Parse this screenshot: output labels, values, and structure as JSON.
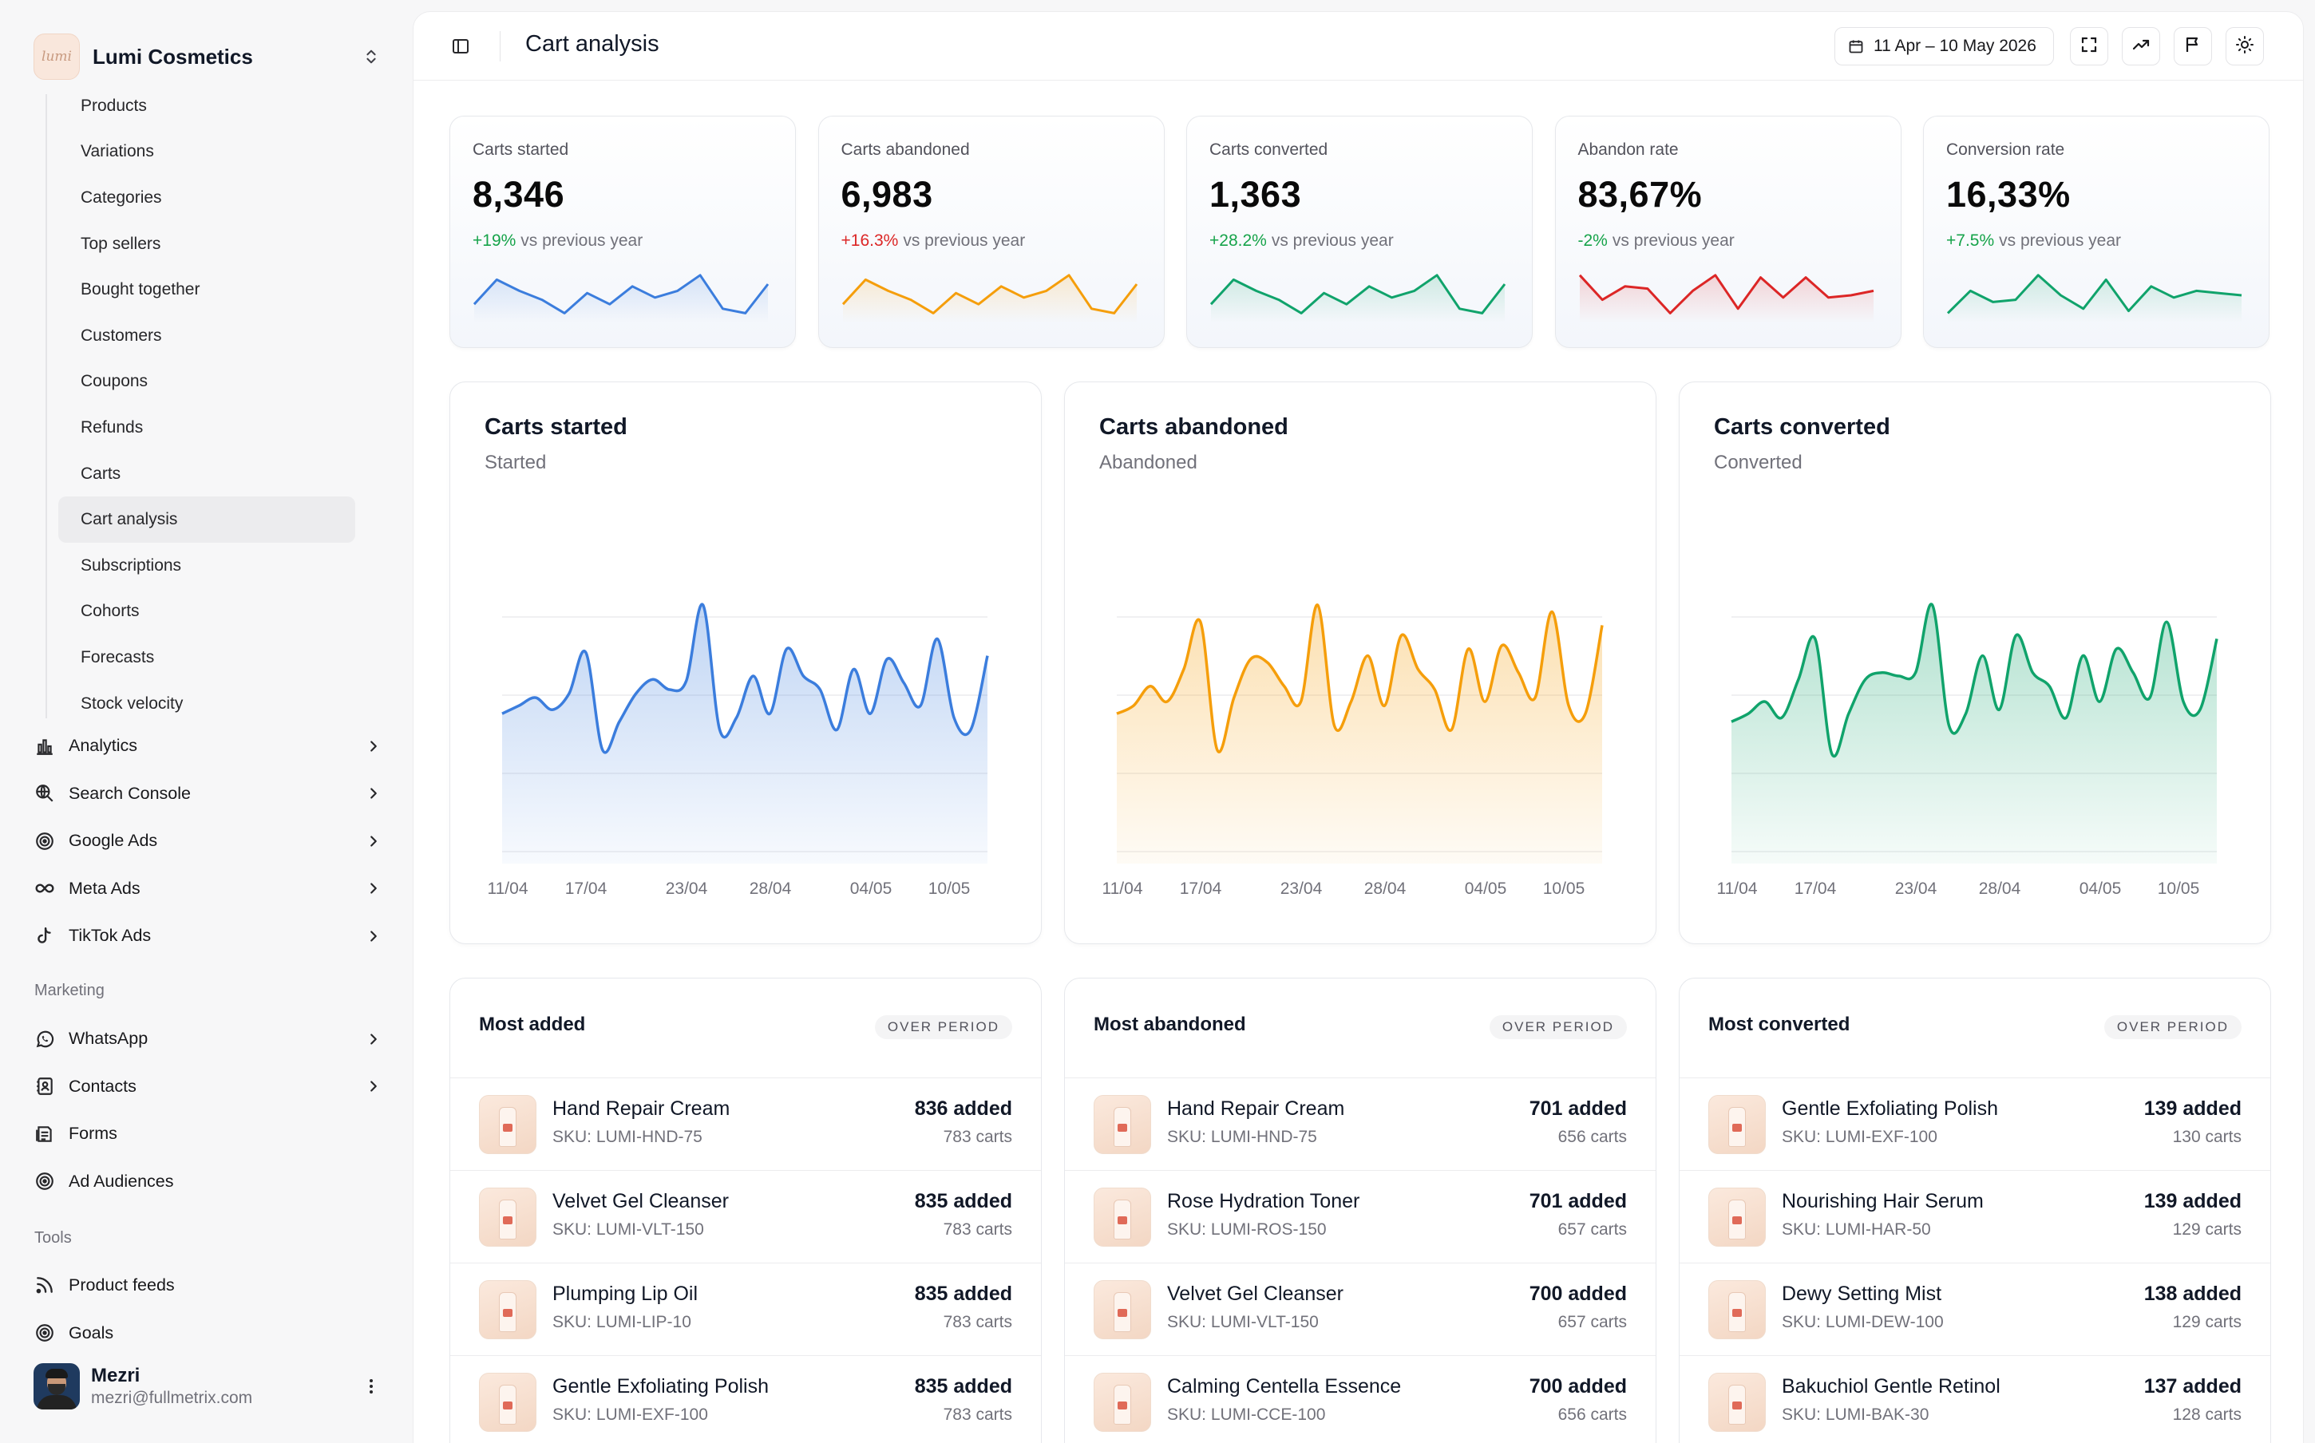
{
  "brand": {
    "name": "Lumi Cosmetics",
    "logo_text": "lumi"
  },
  "subnav": [
    "Products",
    "Variations",
    "Categories",
    "Top sellers",
    "Bought together",
    "Customers",
    "Coupons",
    "Refunds",
    "Carts",
    "Cart analysis",
    "Subscriptions",
    "Cohorts",
    "Forecasts",
    "Stock velocity"
  ],
  "subnav_active": "Cart analysis",
  "nav": [
    {
      "label": "Analytics",
      "icon": "bar-chart-icon"
    },
    {
      "label": "Search Console",
      "icon": "globe-search-icon"
    },
    {
      "label": "Google Ads",
      "icon": "target-icon"
    },
    {
      "label": "Meta Ads",
      "icon": "infinity-icon"
    },
    {
      "label": "TikTok Ads",
      "icon": "tiktok-icon"
    }
  ],
  "marketing": {
    "label": "Marketing",
    "items": [
      {
        "label": "WhatsApp",
        "icon": "whatsapp-icon",
        "chevron": true
      },
      {
        "label": "Contacts",
        "icon": "contacts-icon",
        "chevron": true
      },
      {
        "label": "Forms",
        "icon": "forms-icon",
        "chevron": false
      },
      {
        "label": "Ad Audiences",
        "icon": "target-icon",
        "chevron": false
      }
    ]
  },
  "tools": {
    "label": "Tools",
    "items": [
      {
        "label": "Product feeds",
        "icon": "rss-icon"
      },
      {
        "label": "Goals",
        "icon": "goal-icon"
      }
    ]
  },
  "user": {
    "name": "Mezri",
    "email": "mezri@fullmetrix.com"
  },
  "header": {
    "title": "Cart analysis",
    "date_range": "11 Apr – 10 May 2026"
  },
  "kpis": [
    {
      "label": "Carts started",
      "value": "8,346",
      "delta": "+19%",
      "delta_suffix": "vs previous year",
      "color": "#3b7ddd",
      "delta_color": "#16a34a",
      "spark": [
        0.3,
        0.85,
        0.6,
        0.4,
        0.1,
        0.55,
        0.3,
        0.7,
        0.45,
        0.6,
        0.95,
        0.2,
        0.1,
        0.75
      ]
    },
    {
      "label": "Carts abandoned",
      "value": "6,983",
      "delta": "+16.3%",
      "delta_suffix": "vs previous year",
      "color": "#f59e0b",
      "delta_color": "#dc2626",
      "spark": [
        0.3,
        0.85,
        0.6,
        0.4,
        0.1,
        0.55,
        0.3,
        0.7,
        0.45,
        0.6,
        0.95,
        0.2,
        0.1,
        0.75
      ]
    },
    {
      "label": "Carts converted",
      "value": "1,363",
      "delta": "+28.2%",
      "delta_suffix": "vs previous year",
      "color": "#10a36b",
      "delta_color": "#16a34a",
      "spark": [
        0.3,
        0.85,
        0.6,
        0.4,
        0.1,
        0.55,
        0.3,
        0.7,
        0.45,
        0.6,
        0.95,
        0.2,
        0.1,
        0.75
      ]
    },
    {
      "label": "Abandon rate",
      "value": "83,67%",
      "delta": "-2%",
      "delta_suffix": "vs previous year",
      "color": "#dc2626",
      "delta_color": "#16a34a",
      "spark": [
        0.95,
        0.4,
        0.7,
        0.65,
        0.1,
        0.6,
        0.95,
        0.2,
        0.9,
        0.45,
        0.9,
        0.45,
        0.5,
        0.6
      ]
    },
    {
      "label": "Conversion rate",
      "value": "16,33%",
      "delta": "+7.5%",
      "delta_suffix": "vs previous year",
      "color": "#10a36b",
      "delta_color": "#16a34a",
      "spark": [
        0.1,
        0.6,
        0.35,
        0.4,
        0.95,
        0.5,
        0.2,
        0.85,
        0.15,
        0.7,
        0.45,
        0.6,
        0.55,
        0.5
      ]
    }
  ],
  "chart_data": [
    {
      "type": "area",
      "title": "Carts started",
      "subtitle": "Started",
      "color": "#3b7ddd",
      "x_ticks": [
        "11/04",
        "17/04",
        "23/04",
        "28/04",
        "04/05",
        "10/05"
      ],
      "values": [
        0.38,
        0.42,
        0.46,
        0.4,
        0.48,
        0.72,
        0.2,
        0.34,
        0.48,
        0.56,
        0.5,
        0.55,
        1.0,
        0.3,
        0.36,
        0.58,
        0.38,
        0.74,
        0.58,
        0.5,
        0.3,
        0.62,
        0.38,
        0.68,
        0.54,
        0.42,
        0.8,
        0.36,
        0.3,
        0.7
      ]
    },
    {
      "type": "area",
      "title": "Carts abandoned",
      "subtitle": "Abandoned",
      "color": "#f59e0b",
      "x_ticks": [
        "11/04",
        "17/04",
        "23/04",
        "28/04",
        "04/05",
        "10/05"
      ],
      "values": [
        0.38,
        0.42,
        0.52,
        0.44,
        0.62,
        0.9,
        0.2,
        0.46,
        0.68,
        0.66,
        0.52,
        0.44,
        1.0,
        0.32,
        0.44,
        0.7,
        0.42,
        0.82,
        0.62,
        0.5,
        0.3,
        0.74,
        0.44,
        0.76,
        0.6,
        0.46,
        0.96,
        0.42,
        0.38,
        0.88
      ]
    },
    {
      "type": "area",
      "title": "Carts converted",
      "subtitle": "Converted",
      "color": "#10a36b",
      "x_ticks": [
        "11/04",
        "17/04",
        "23/04",
        "28/04",
        "04/05",
        "10/05"
      ],
      "values": [
        0.34,
        0.38,
        0.44,
        0.36,
        0.56,
        0.8,
        0.18,
        0.38,
        0.56,
        0.6,
        0.58,
        0.6,
        1.0,
        0.32,
        0.38,
        0.7,
        0.4,
        0.82,
        0.6,
        0.52,
        0.36,
        0.7,
        0.44,
        0.74,
        0.6,
        0.46,
        0.9,
        0.44,
        0.4,
        0.8
      ]
    }
  ],
  "lists": [
    {
      "title": "Most added",
      "badge": "OVER PERIOD",
      "rows": [
        {
          "name": "Hand Repair Cream",
          "sku": "SKU: LUMI-HND-75",
          "added": "836 added",
          "carts": "783 carts"
        },
        {
          "name": "Velvet Gel Cleanser",
          "sku": "SKU: LUMI-VLT-150",
          "added": "835 added",
          "carts": "783 carts"
        },
        {
          "name": "Plumping Lip Oil",
          "sku": "SKU: LUMI-LIP-10",
          "added": "835 added",
          "carts": "783 carts"
        },
        {
          "name": "Gentle Exfoliating Polish",
          "sku": "SKU: LUMI-EXF-100",
          "added": "835 added",
          "carts": "783 carts"
        }
      ]
    },
    {
      "title": "Most abandoned",
      "badge": "OVER PERIOD",
      "rows": [
        {
          "name": "Hand Repair Cream",
          "sku": "SKU: LUMI-HND-75",
          "added": "701 added",
          "carts": "656 carts"
        },
        {
          "name": "Rose Hydration Toner",
          "sku": "SKU: LUMI-ROS-150",
          "added": "701 added",
          "carts": "657 carts"
        },
        {
          "name": "Velvet Gel Cleanser",
          "sku": "SKU: LUMI-VLT-150",
          "added": "700 added",
          "carts": "657 carts"
        },
        {
          "name": "Calming Centella Essence",
          "sku": "SKU: LUMI-CCE-100",
          "added": "700 added",
          "carts": "656 carts"
        }
      ]
    },
    {
      "title": "Most converted",
      "badge": "OVER PERIOD",
      "rows": [
        {
          "name": "Gentle Exfoliating Polish",
          "sku": "SKU: LUMI-EXF-100",
          "added": "139 added",
          "carts": "130 carts"
        },
        {
          "name": "Nourishing Hair Serum",
          "sku": "SKU: LUMI-HAR-50",
          "added": "139 added",
          "carts": "129 carts"
        },
        {
          "name": "Dewy Setting Mist",
          "sku": "SKU: LUMI-DEW-100",
          "added": "138 added",
          "carts": "129 carts"
        },
        {
          "name": "Bakuchiol Gentle Retinol",
          "sku": "SKU: LUMI-BAK-30",
          "added": "137 added",
          "carts": "128 carts"
        }
      ]
    }
  ]
}
